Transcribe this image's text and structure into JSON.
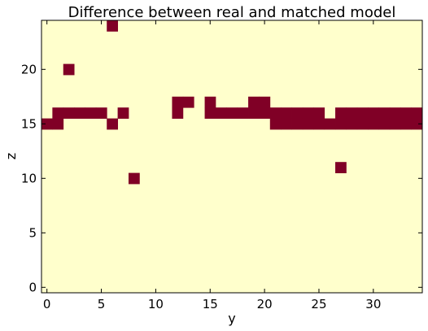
{
  "chart_data": {
    "type": "heatmap",
    "title": "Difference between real and matched model",
    "xlabel": "y",
    "ylabel": "z",
    "xlim": [
      -0.5,
      34.5
    ],
    "ylim": [
      -0.5,
      24.5
    ],
    "x_ticks": [
      0,
      5,
      10,
      15,
      20,
      25,
      30
    ],
    "y_ticks": [
      0,
      5,
      10,
      15,
      20
    ],
    "grid": false,
    "legend": "none",
    "colors": {
      "background": "#ffffcc",
      "value": "#800026"
    },
    "matched_value": 0,
    "mismatch_value": 1,
    "mismatch_cells": [
      [
        6,
        24
      ],
      [
        2,
        20
      ],
      [
        12,
        17
      ],
      [
        13,
        17
      ],
      [
        15,
        17
      ],
      [
        19,
        17
      ],
      [
        20,
        17
      ],
      [
        1,
        16
      ],
      [
        2,
        16
      ],
      [
        3,
        16
      ],
      [
        4,
        16
      ],
      [
        5,
        16
      ],
      [
        7,
        16
      ],
      [
        12,
        16
      ],
      [
        15,
        16
      ],
      [
        16,
        16
      ],
      [
        17,
        16
      ],
      [
        18,
        16
      ],
      [
        19,
        16
      ],
      [
        20,
        16
      ],
      [
        21,
        16
      ],
      [
        22,
        16
      ],
      [
        23,
        16
      ],
      [
        24,
        16
      ],
      [
        25,
        16
      ],
      [
        27,
        16
      ],
      [
        28,
        16
      ],
      [
        29,
        16
      ],
      [
        30,
        16
      ],
      [
        31,
        16
      ],
      [
        32,
        16
      ],
      [
        33,
        16
      ],
      [
        34,
        16
      ],
      [
        0,
        15
      ],
      [
        1,
        15
      ],
      [
        6,
        15
      ],
      [
        21,
        15
      ],
      [
        22,
        15
      ],
      [
        23,
        15
      ],
      [
        24,
        15
      ],
      [
        25,
        15
      ],
      [
        26,
        15
      ],
      [
        27,
        15
      ],
      [
        28,
        15
      ],
      [
        29,
        15
      ],
      [
        30,
        15
      ],
      [
        31,
        15
      ],
      [
        32,
        15
      ],
      [
        33,
        15
      ],
      [
        34,
        15
      ],
      [
        27,
        11
      ],
      [
        8,
        10
      ]
    ]
  }
}
